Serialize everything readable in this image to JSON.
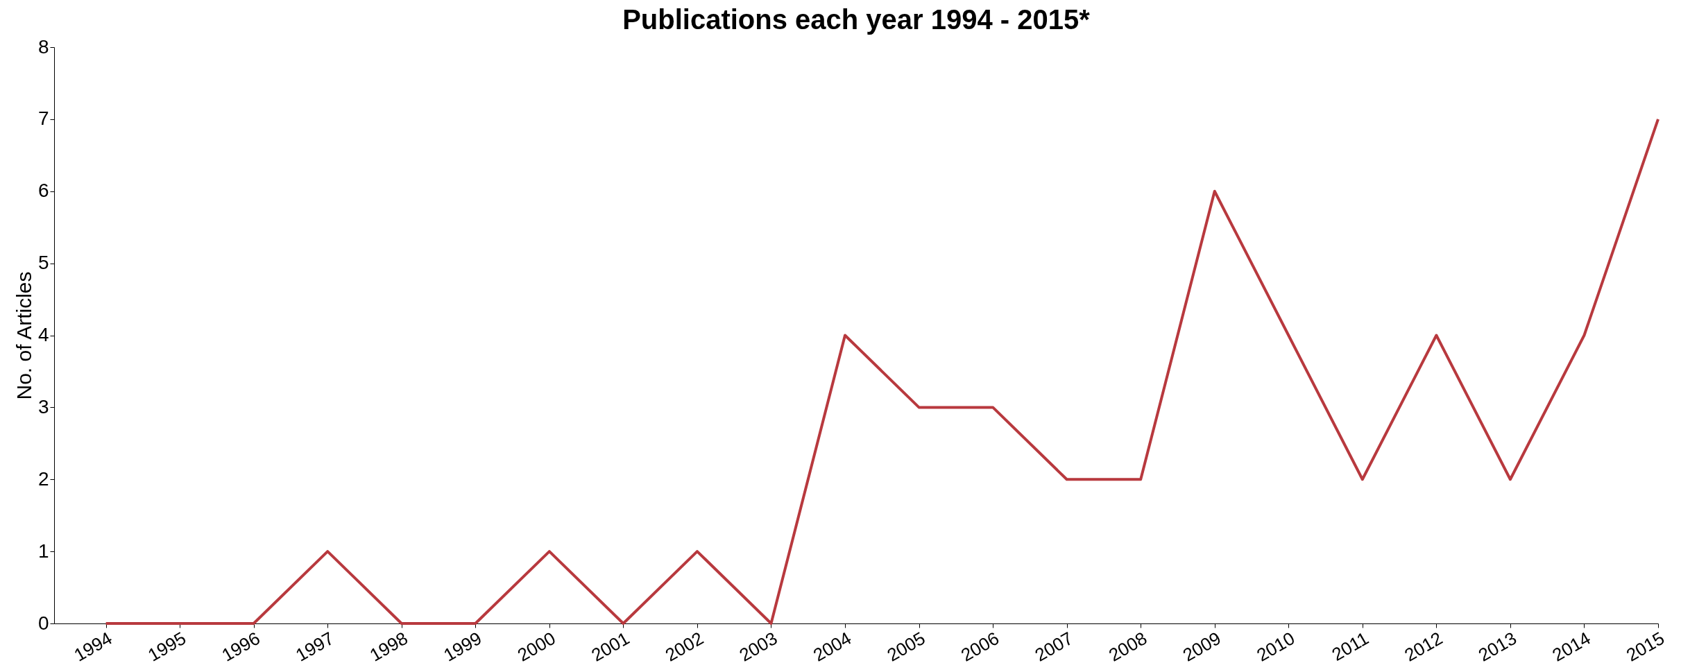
{
  "chart_data": {
    "type": "line",
    "title": "Publications each year 1994 - 2015*",
    "ylabel": "No. of Articles",
    "categories": [
      "1994",
      "1995",
      "1996",
      "1997",
      "1998",
      "1999",
      "2000",
      "2001",
      "2002",
      "2003",
      "2004",
      "2005",
      "2006",
      "2007",
      "2008",
      "2009",
      "2010",
      "2011",
      "2012",
      "2013",
      "2014",
      "2015"
    ],
    "series": [
      {
        "color": "#b8393e",
        "values": [
          0,
          0,
          0,
          1,
          0,
          0,
          1,
          0,
          1,
          0,
          4,
          3,
          3,
          2,
          2,
          6,
          4,
          2,
          4,
          2,
          4,
          7
        ]
      }
    ],
    "ylim": [
      0,
      8
    ],
    "yticks": [
      0,
      1,
      2,
      3,
      4,
      5,
      6,
      7,
      8
    ],
    "grid": false,
    "marker": "none",
    "line_style": "solid"
  }
}
